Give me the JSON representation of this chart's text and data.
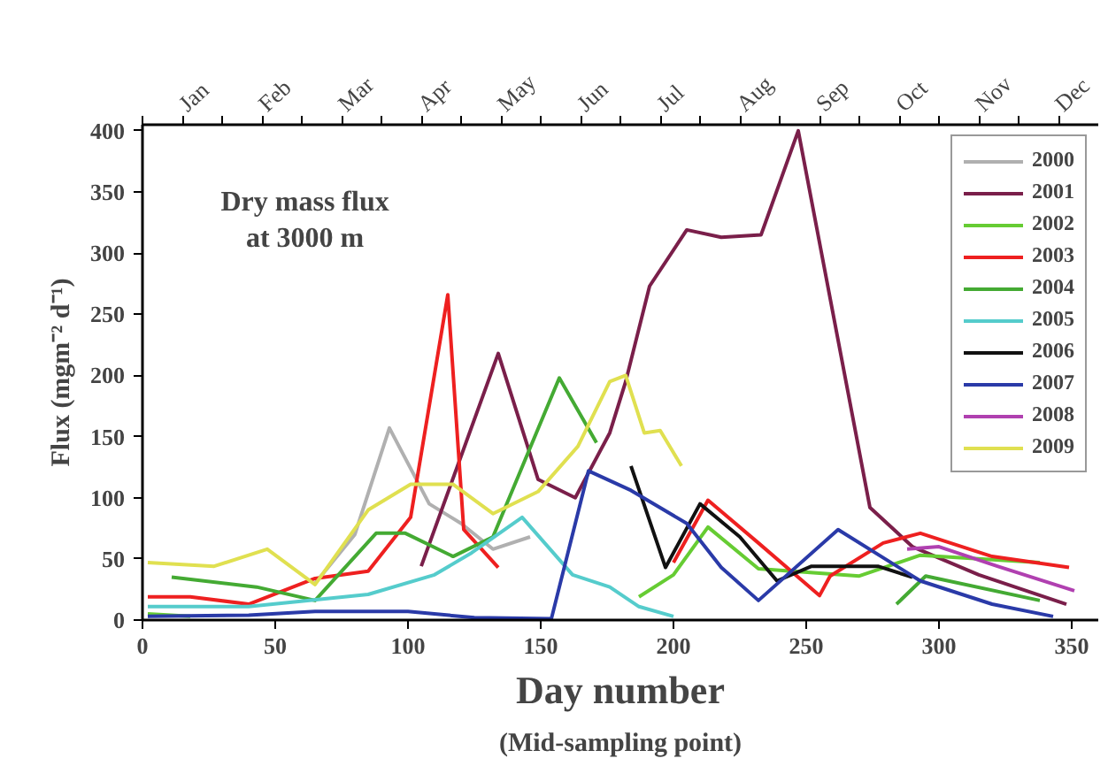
{
  "chart_data": {
    "type": "line",
    "xlabel": "Day number",
    "ylabel": "Flux (mgm⁻² d⁻¹)",
    "annotations": [
      "Dry mass flux\nat 3000 m",
      "(Mid-sampling point)",
      "Jan",
      "Feb",
      "Mar",
      "Apr",
      "May",
      "Jun",
      "Jul",
      "Aug",
      "Sep",
      "Oct",
      "Nov",
      "Dec"
    ],
    "xlim": [
      0,
      360
    ],
    "xticks": [
      0,
      50,
      100,
      150,
      200,
      250,
      300,
      350
    ],
    "ylim": [
      0,
      405
    ],
    "yticks": [
      0,
      50,
      100,
      150,
      200,
      250,
      300,
      350,
      400
    ],
    "legend": "top right",
    "grid": false,
    "marker": "none",
    "line_style": "solid",
    "series": [
      {
        "name": "2000",
        "color": "#b0b0b0",
        "x": [
          65,
          80,
          93,
          108,
          120,
          132,
          146
        ],
        "values": [
          30,
          70,
          157,
          95,
          79,
          58,
          68
        ]
      },
      {
        "name": "2001",
        "color": "#7a1f4a",
        "x": [
          105,
          134,
          149,
          163,
          176,
          182,
          191,
          205,
          218,
          233,
          247,
          274,
          290,
          315,
          348
        ],
        "values": [
          44,
          218,
          115,
          100,
          153,
          195,
          273,
          319,
          313,
          315,
          400,
          92,
          60,
          37,
          13
        ]
      },
      {
        "name": "2002",
        "color": "#66cc33",
        "x": [
          2,
          18,
          100,
          187,
          200,
          213,
          232,
          270,
          293,
          338
        ],
        "values": [
          5,
          3,
          null,
          19,
          37,
          76,
          42,
          36,
          53,
          47
        ]
      },
      {
        "name": "2003",
        "color": "#ee2020",
        "x": [
          2,
          18,
          40,
          65,
          85,
          101,
          115,
          121,
          134,
          170,
          200,
          213,
          232,
          255,
          259,
          279,
          293,
          320,
          349
        ],
        "values": [
          19,
          19,
          13,
          34,
          40,
          84,
          266,
          74,
          43,
          null,
          47,
          98,
          63,
          20,
          36,
          63,
          71,
          52,
          43
        ]
      },
      {
        "name": "2004",
        "color": "#44aa33",
        "x": [
          11,
          43,
          65,
          88,
          99,
          117,
          132,
          157,
          171,
          230,
          284,
          295,
          338
        ],
        "values": [
          35,
          27,
          16,
          71,
          71,
          52,
          68,
          198,
          145,
          null,
          13,
          36,
          16
        ]
      },
      {
        "name": "2005",
        "color": "#55cccc",
        "x": [
          2,
          40,
          85,
          110,
          124,
          143,
          162,
          176,
          187,
          200
        ],
        "values": [
          11,
          11,
          21,
          37,
          55,
          84,
          37,
          27,
          11,
          3
        ]
      },
      {
        "name": "2006",
        "color": "#111111",
        "x": [
          184,
          197,
          210,
          225,
          239,
          252,
          277,
          290
        ],
        "values": [
          126,
          43,
          95,
          68,
          32,
          44,
          44,
          35
        ]
      },
      {
        "name": "2007",
        "color": "#2a3aa8",
        "x": [
          2,
          40,
          65,
          100,
          125,
          154,
          168,
          184,
          205,
          218,
          232,
          262,
          293,
          320,
          343
        ],
        "values": [
          3,
          4,
          7,
          7,
          2,
          1,
          122,
          106,
          79,
          43,
          16,
          74,
          32,
          13,
          3
        ]
      },
      {
        "name": "2008",
        "color": "#b040b0",
        "x": [
          288,
          300,
          322,
          351
        ],
        "values": [
          58,
          60,
          44,
          24
        ]
      },
      {
        "name": "2009",
        "color": "#e0e050",
        "x": [
          2,
          27,
          47,
          65,
          85,
          101,
          117,
          132,
          149,
          164,
          176,
          182,
          189,
          195,
          203
        ],
        "values": [
          47,
          44,
          58,
          29,
          90,
          111,
          111,
          87,
          105,
          142,
          195,
          200,
          153,
          155,
          126
        ]
      }
    ]
  }
}
